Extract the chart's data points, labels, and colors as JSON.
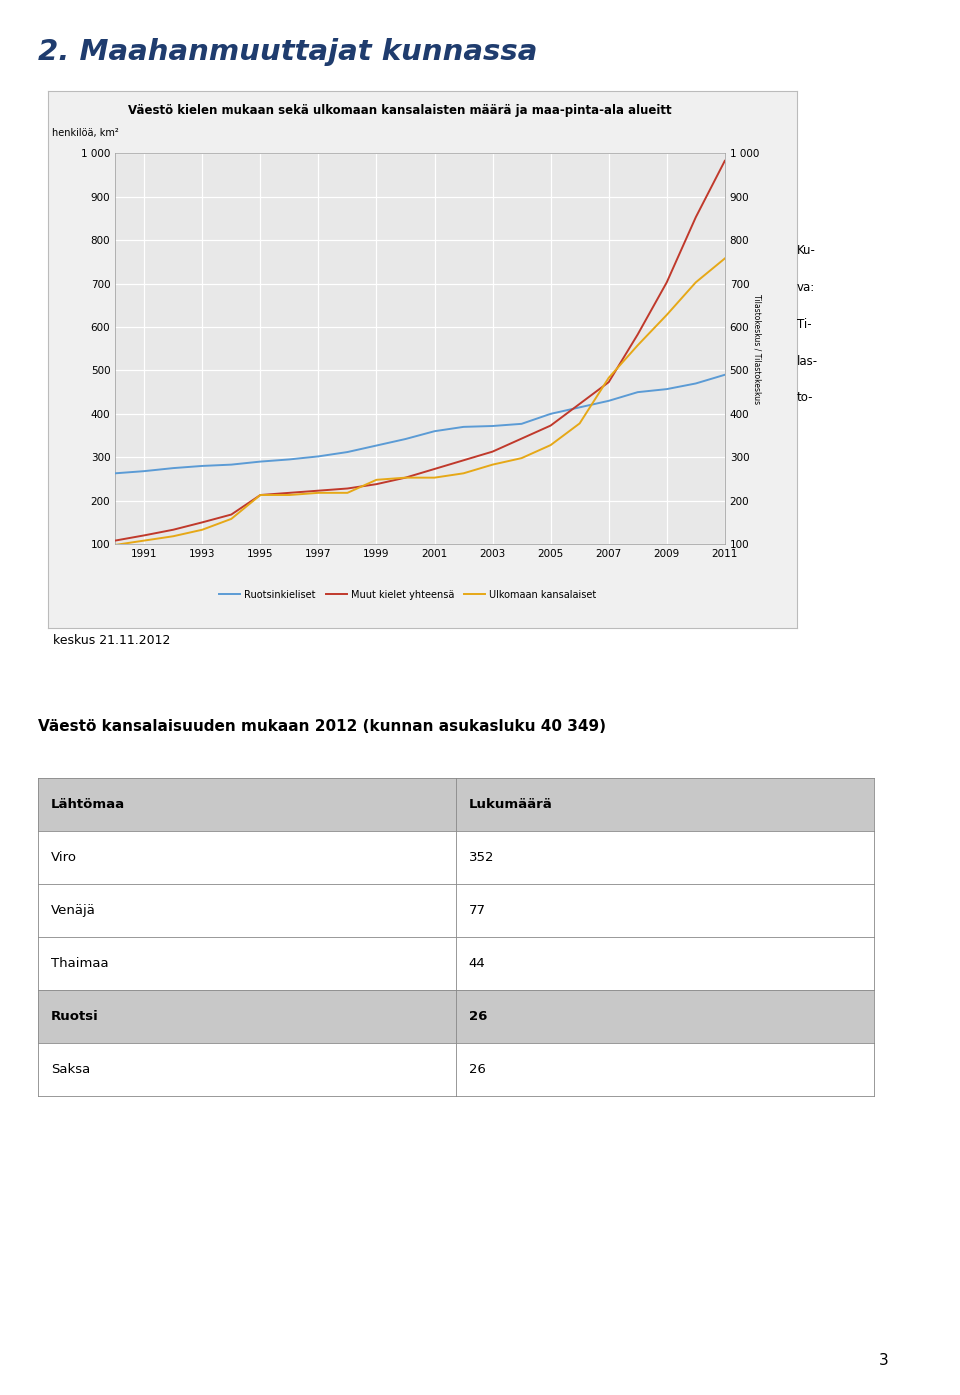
{
  "page_title": "2. Maahanmuuttajat kunnassa",
  "page_title_color": "#1f3c6e",
  "chart_title": "Väestö kielen mukaan sekä ulkomaan kansalaisten määrä ja maa-pinta-ala alueitt",
  "chart_ylabel_left": "henkilöä, km²",
  "years": [
    1990,
    1991,
    1992,
    1993,
    1994,
    1995,
    1996,
    1997,
    1998,
    1999,
    2000,
    2001,
    2002,
    2003,
    2004,
    2005,
    2006,
    2007,
    2008,
    2009,
    2010,
    2011
  ],
  "ruotsinkieliset": [
    263,
    268,
    275,
    280,
    283,
    290,
    295,
    302,
    312,
    327,
    342,
    360,
    370,
    372,
    377,
    400,
    415,
    430,
    450,
    457,
    470,
    490
  ],
  "muut_kielet": [
    108,
    120,
    133,
    150,
    168,
    213,
    218,
    223,
    228,
    238,
    253,
    273,
    293,
    313,
    343,
    373,
    423,
    473,
    583,
    703,
    853,
    983
  ],
  "ulkomaan_kansalaiset": [
    98,
    108,
    118,
    133,
    158,
    213,
    213,
    218,
    218,
    248,
    253,
    253,
    263,
    283,
    298,
    328,
    378,
    483,
    558,
    628,
    703,
    758
  ],
  "ruotsinkieliset_color": "#5b9bd5",
  "muut_kielet_color": "#c0392b",
  "ulkomaan_kansalaiset_color": "#e6a817",
  "ylim": [
    100,
    1000
  ],
  "yticks": [
    100,
    200,
    300,
    400,
    500,
    600,
    700,
    800,
    900,
    1000
  ],
  "ytick_labels_left": [
    "100",
    "200",
    "300",
    "400",
    "500",
    "600",
    "700",
    "800",
    "900",
    "1 000"
  ],
  "ytick_labels_right": [
    "100",
    "200",
    "300",
    "400",
    "500",
    "600",
    "700",
    "800",
    "900",
    "1 000"
  ],
  "xtick_labels": [
    "1991",
    "1993",
    "1995",
    "1997",
    "1999",
    "2001",
    "2003",
    "2005",
    "2007",
    "2009",
    "2011"
  ],
  "legend_labels": [
    "Ruotsinkieliset",
    "Muut kielet yhteensä",
    "Ulkomaan kansalaiset"
  ],
  "caption_right_lines": [
    "Ku-",
    "va:",
    "Ti-",
    "las-",
    "to-"
  ],
  "caption_below": "keskus 21.11.2012",
  "section_title": "Väestö kansalaisuuden mukaan 2012 (kunnan asukasluku 40 349)",
  "table_headers": [
    "Lähtömaa",
    "Lukumäärä"
  ],
  "table_rows": [
    [
      "Viro",
      "352"
    ],
    [
      "Venäjä",
      "77"
    ],
    [
      "Thaimaa",
      "44"
    ],
    [
      "Ruotsi",
      "26"
    ],
    [
      "Saksa",
      "26"
    ]
  ],
  "table_bold_rows": [
    3
  ],
  "header_bg": "#c8c8c8",
  "row_bg": "#ffffff",
  "chart_bg": "#e8e8e8",
  "chart_border": "#aaaaaa",
  "page_number": "3"
}
